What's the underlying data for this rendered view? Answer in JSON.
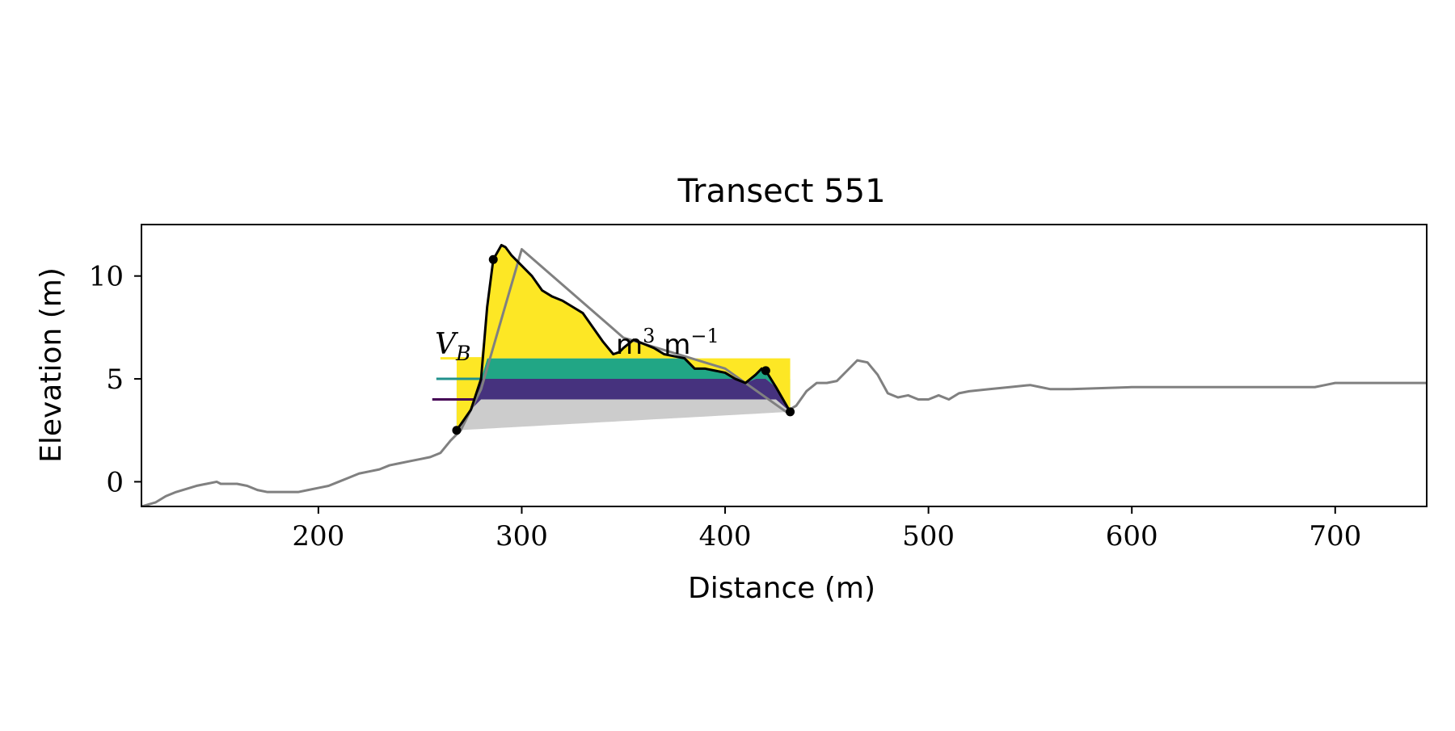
{
  "chart_data": {
    "type": "area",
    "title": "Transect 551",
    "xlabel": "Distance (m)",
    "ylabel": "Elevation (m)",
    "xlim": [
      113,
      745
    ],
    "ylim": [
      -1.2,
      12.5
    ],
    "xticks": [
      200,
      300,
      400,
      500,
      600,
      700
    ],
    "yticks": [
      0,
      5,
      10
    ],
    "grid": false,
    "annotation": {
      "volume_symbol": "V",
      "volume_subscript": "B",
      "units": "m",
      "units_exp1": "3",
      "units_mid": " m",
      "units_exp2": "−1"
    },
    "profile": {
      "color": "#808080",
      "x": [
        113,
        120,
        125,
        130,
        140,
        150,
        152,
        155,
        160,
        165,
        170,
        175,
        180,
        185,
        190,
        195,
        200,
        205,
        210,
        215,
        220,
        225,
        230,
        235,
        240,
        245,
        250,
        255,
        260,
        265,
        270,
        280,
        300,
        350,
        400,
        430,
        435,
        440,
        445,
        450,
        455,
        460,
        465,
        470,
        475,
        480,
        485,
        490,
        495,
        500,
        505,
        510,
        515,
        520,
        530,
        540,
        550,
        555,
        560,
        570,
        600,
        650,
        690,
        695,
        700,
        720,
        745
      ],
      "y": [
        -1.2,
        -1.0,
        -0.7,
        -0.5,
        -0.2,
        0.0,
        -0.1,
        -0.1,
        -0.1,
        -0.2,
        -0.4,
        -0.5,
        -0.5,
        -0.5,
        -0.5,
        -0.4,
        -0.3,
        -0.2,
        0.0,
        0.2,
        0.4,
        0.5,
        0.6,
        0.8,
        0.9,
        1.0,
        1.1,
        1.2,
        1.4,
        2.0,
        2.5,
        4.5,
        11.3,
        7.0,
        5.5,
        3.4,
        3.7,
        4.4,
        4.8,
        4.8,
        4.9,
        5.4,
        5.9,
        5.8,
        5.2,
        4.3,
        4.1,
        4.2,
        4.0,
        4.0,
        4.2,
        4.0,
        4.3,
        4.4,
        4.5,
        4.6,
        4.7,
        4.6,
        4.5,
        4.5,
        4.6,
        4.6,
        4.6,
        4.7,
        4.8,
        4.8,
        4.8
      ]
    },
    "dune": {
      "color": "#000000",
      "x": [
        268,
        275,
        280,
        283,
        286,
        290,
        292,
        295,
        300,
        305,
        310,
        315,
        320,
        325,
        330,
        335,
        340,
        345,
        348,
        350,
        355,
        360,
        365,
        370,
        375,
        380,
        385,
        390,
        395,
        400,
        405,
        410,
        415,
        418,
        420,
        425,
        432
      ],
      "y": [
        2.5,
        3.5,
        5.0,
        8.5,
        10.8,
        11.5,
        11.4,
        11.0,
        10.5,
        10.0,
        9.3,
        9.0,
        8.8,
        8.5,
        8.2,
        7.5,
        6.8,
        6.2,
        6.3,
        6.5,
        6.9,
        6.7,
        6.5,
        6.2,
        6.1,
        6.0,
        5.5,
        5.5,
        5.4,
        5.3,
        5.0,
        4.8,
        5.2,
        5.5,
        5.4,
        4.6,
        3.4
      ]
    },
    "toe_point": {
      "x": 268,
      "y": 2.5
    },
    "crest_point": {
      "x": 286,
      "y": 10.8
    },
    "heel_point": {
      "x": 420,
      "y": 5.4
    },
    "end_point": {
      "x": 432,
      "y": 3.4
    },
    "base_fill": {
      "color": "#cccccc",
      "x0": 268,
      "y0": 2.5,
      "x1": 432,
      "y1": 3.4
    },
    "levels": [
      {
        "z": 4.0,
        "line_x": 256,
        "color": "#440154",
        "fill": "#46327e"
      },
      {
        "z": 5.0,
        "line_x": 258,
        "color": "#21918c",
        "fill": "#21a685"
      },
      {
        "z": 6.0,
        "line_x": 260,
        "color": "#fde725",
        "fill": "#fde725"
      }
    ]
  }
}
